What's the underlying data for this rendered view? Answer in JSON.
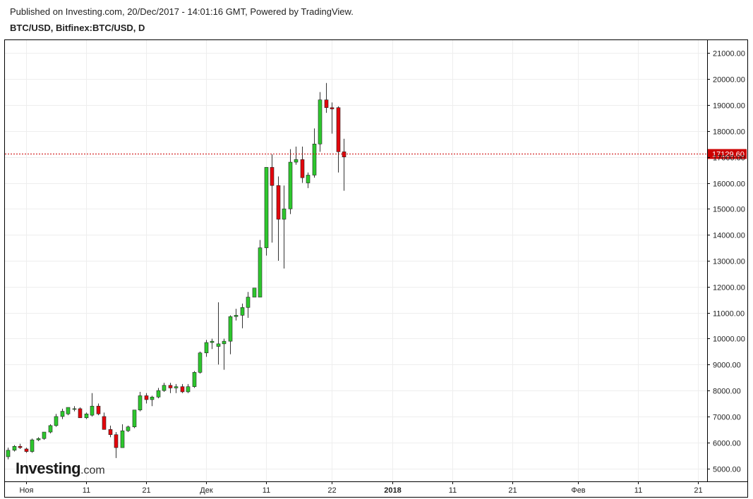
{
  "header": {
    "published": "Published on Investing.com, 20/Dec/2017 - 14:01:16 GMT, Powered by TradingView.",
    "symbol": "BTC/USD, Bitfinex:BTC/USD, D"
  },
  "logo": {
    "name": "Investing",
    "suffix": ".com"
  },
  "chart_data": {
    "type": "candlestick",
    "ylim": [
      4500,
      21500
    ],
    "y_ticks": [
      "5000.00",
      "6000.00",
      "7000.00",
      "8000.00",
      "9000.00",
      "10000.00",
      "11000.00",
      "12000.00",
      "13000.00",
      "14000.00",
      "15000.00",
      "16000.00",
      "17000.00",
      "18000.00",
      "19000.00",
      "20000.00",
      "21000.00"
    ],
    "x_range": [
      -3.5,
      113.5
    ],
    "x_ticks": [
      {
        "label": "Ноя",
        "d": 0,
        "bold": false
      },
      {
        "label": "11",
        "d": 10,
        "bold": false
      },
      {
        "label": "21",
        "d": 20,
        "bold": false
      },
      {
        "label": "Дек",
        "d": 30,
        "bold": false
      },
      {
        "label": "11",
        "d": 40,
        "bold": false
      },
      {
        "label": "22",
        "d": 51,
        "bold": false
      },
      {
        "label": "2018",
        "d": 61,
        "bold": true
      },
      {
        "label": "11",
        "d": 71,
        "bold": false
      },
      {
        "label": "21",
        "d": 81,
        "bold": false
      },
      {
        "label": "Фев",
        "d": 92,
        "bold": false
      },
      {
        "label": "11",
        "d": 102,
        "bold": false
      },
      {
        "label": "21",
        "d": 112,
        "bold": false
      }
    ],
    "last_price": 17129.6,
    "last_price_label": "17129.60",
    "colors": {
      "up": "#2dc72d",
      "down": "#e3060c",
      "wick": "#333333",
      "price_line": "#cc0000",
      "grid": "#eeeeee"
    },
    "candles": [
      {
        "d": -3,
        "o": 5450,
        "h": 5800,
        "l": 5350,
        "c": 5700
      },
      {
        "d": -2,
        "o": 5700,
        "h": 5900,
        "l": 5650,
        "c": 5850
      },
      {
        "d": -1,
        "o": 5850,
        "h": 5950,
        "l": 5750,
        "c": 5800
      },
      {
        "d": 0,
        "o": 5750,
        "h": 5800,
        "l": 5600,
        "c": 5650
      },
      {
        "d": 1,
        "o": 5650,
        "h": 6150,
        "l": 5600,
        "c": 6100
      },
      {
        "d": 2,
        "o": 6100,
        "h": 6200,
        "l": 6050,
        "c": 6150
      },
      {
        "d": 3,
        "o": 6150,
        "h": 6400,
        "l": 6100,
        "c": 6400
      },
      {
        "d": 4,
        "o": 6400,
        "h": 6700,
        "l": 6350,
        "c": 6650
      },
      {
        "d": 5,
        "o": 6650,
        "h": 7100,
        "l": 6600,
        "c": 7000
      },
      {
        "d": 6,
        "o": 7000,
        "h": 7300,
        "l": 6900,
        "c": 7200
      },
      {
        "d": 7,
        "o": 7100,
        "h": 7350,
        "l": 7050,
        "c": 7350
      },
      {
        "d": 8,
        "o": 7300,
        "h": 7400,
        "l": 7200,
        "c": 7300
      },
      {
        "d": 9,
        "o": 7300,
        "h": 7350,
        "l": 6950,
        "c": 6950
      },
      {
        "d": 10,
        "o": 6950,
        "h": 7150,
        "l": 6900,
        "c": 7100
      },
      {
        "d": 11,
        "o": 7050,
        "h": 7900,
        "l": 7000,
        "c": 7400
      },
      {
        "d": 12,
        "o": 7400,
        "h": 7500,
        "l": 7050,
        "c": 7100
      },
      {
        "d": 13,
        "o": 7000,
        "h": 7150,
        "l": 6500,
        "c": 6500
      },
      {
        "d": 14,
        "o": 6500,
        "h": 6650,
        "l": 6200,
        "c": 6300
      },
      {
        "d": 15,
        "o": 6300,
        "h": 6400,
        "l": 5400,
        "c": 5800
      },
      {
        "d": 16,
        "o": 5800,
        "h": 6700,
        "l": 5800,
        "c": 6450
      },
      {
        "d": 17,
        "o": 6450,
        "h": 6650,
        "l": 6400,
        "c": 6600
      },
      {
        "d": 18,
        "o": 6600,
        "h": 7250,
        "l": 6550,
        "c": 7250
      },
      {
        "d": 19,
        "o": 7250,
        "h": 7950,
        "l": 7200,
        "c": 7800
      },
      {
        "d": 20,
        "o": 7800,
        "h": 7900,
        "l": 7500,
        "c": 7650
      },
      {
        "d": 21,
        "o": 7650,
        "h": 7800,
        "l": 7400,
        "c": 7750
      },
      {
        "d": 22,
        "o": 7750,
        "h": 8100,
        "l": 7700,
        "c": 8000
      },
      {
        "d": 23,
        "o": 8000,
        "h": 8300,
        "l": 7950,
        "c": 8200
      },
      {
        "d": 24,
        "o": 8200,
        "h": 8300,
        "l": 7900,
        "c": 8100
      },
      {
        "d": 25,
        "o": 8100,
        "h": 8250,
        "l": 7900,
        "c": 8150
      },
      {
        "d": 26,
        "o": 8150,
        "h": 8250,
        "l": 7900,
        "c": 7950
      },
      {
        "d": 27,
        "o": 7950,
        "h": 8250,
        "l": 7900,
        "c": 8150
      },
      {
        "d": 28,
        "o": 8150,
        "h": 8750,
        "l": 8100,
        "c": 8700
      },
      {
        "d": 29,
        "o": 8700,
        "h": 9500,
        "l": 8650,
        "c": 9450
      },
      {
        "d": 30,
        "o": 9450,
        "h": 9950,
        "l": 9300,
        "c": 9850
      },
      {
        "d": 31,
        "o": 9850,
        "h": 10000,
        "l": 9600,
        "c": 9900
      },
      {
        "d": 32,
        "o": 9700,
        "h": 11400,
        "l": 9000,
        "c": 9800
      },
      {
        "d": 33,
        "o": 9800,
        "h": 10000,
        "l": 8800,
        "c": 9900
      },
      {
        "d": 34,
        "o": 9900,
        "h": 10900,
        "l": 9400,
        "c": 10850
      },
      {
        "d": 35,
        "o": 10850,
        "h": 11150,
        "l": 10700,
        "c": 10900
      },
      {
        "d": 36,
        "o": 10900,
        "h": 11350,
        "l": 10400,
        "c": 11200
      },
      {
        "d": 37,
        "o": 11200,
        "h": 11800,
        "l": 10800,
        "c": 11600
      },
      {
        "d": 38,
        "o": 11600,
        "h": 11950,
        "l": 11600,
        "c": 11950
      },
      {
        "d": 39,
        "o": 11600,
        "h": 13800,
        "l": 11600,
        "c": 13500
      },
      {
        "d": 40,
        "o": 13500,
        "h": 16600,
        "l": 13200,
        "c": 16600
      },
      {
        "d": 41,
        "o": 16600,
        "h": 17100,
        "l": 13700,
        "c": 15900
      },
      {
        "d": 42,
        "o": 15900,
        "h": 16250,
        "l": 13000,
        "c": 14600
      },
      {
        "d": 43,
        "o": 14600,
        "h": 15900,
        "l": 12700,
        "c": 15000
      },
      {
        "d": 44,
        "o": 15000,
        "h": 17300,
        "l": 14800,
        "c": 16800
      },
      {
        "d": 45,
        "o": 16800,
        "h": 17400,
        "l": 16700,
        "c": 16900
      },
      {
        "d": 46,
        "o": 16900,
        "h": 17400,
        "l": 16000,
        "c": 16200
      },
      {
        "d": 47,
        "o": 16000,
        "h": 16400,
        "l": 15800,
        "c": 16300
      },
      {
        "d": 48,
        "o": 16300,
        "h": 18100,
        "l": 16200,
        "c": 17500
      },
      {
        "d": 49,
        "o": 17500,
        "h": 19500,
        "l": 17200,
        "c": 19200
      },
      {
        "d": 50,
        "o": 19200,
        "h": 19850,
        "l": 18700,
        "c": 18900
      },
      {
        "d": 51,
        "o": 18900,
        "h": 19100,
        "l": 17900,
        "c": 18850
      },
      {
        "d": 52,
        "o": 18900,
        "h": 18950,
        "l": 16400,
        "c": 17200
      },
      {
        "d": 53,
        "o": 17200,
        "h": 17700,
        "l": 15700,
        "c": 17000
      }
    ]
  }
}
